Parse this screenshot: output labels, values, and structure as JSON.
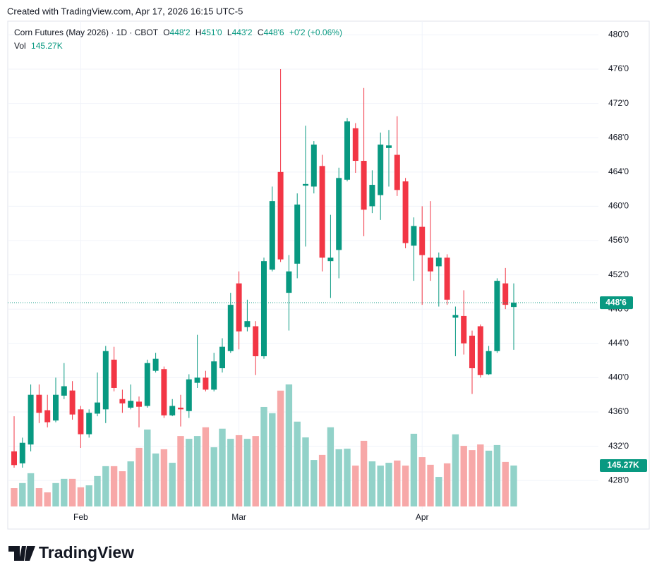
{
  "caption": "Created with TradingView.com, Apr 17, 2026 16:15 UTC-5",
  "brand": "TradingView",
  "chart_data": {
    "type": "candlestick",
    "title": "Corn Futures (May 2026) · 1D · CBOT",
    "ohlc_legend": [
      {
        "key": "O",
        "value": "448'2"
      },
      {
        "key": "H",
        "value": "451'0"
      },
      {
        "key": "L",
        "value": "443'2"
      },
      {
        "key": "C",
        "value": "448'6"
      }
    ],
    "change": "+0'2 (+0.06%)",
    "categories": [
      null,
      null,
      null,
      null,
      null,
      null,
      null,
      null,
      "Feb",
      null,
      null,
      null,
      null,
      null,
      null,
      null,
      null,
      null,
      null,
      null,
      null,
      null,
      null,
      null,
      null,
      null,
      null,
      "Mar",
      null,
      null,
      null,
      null,
      null,
      null,
      null,
      null,
      null,
      null,
      null,
      null,
      null,
      null,
      null,
      null,
      null,
      null,
      null,
      null,
      null,
      "Apr",
      null,
      null,
      null,
      null,
      null,
      null,
      null,
      null,
      null,
      null,
      null
    ],
    "open": [
      431.4,
      430,
      432.2,
      438,
      436.2,
      435,
      437.9,
      438.5,
      436.3,
      433.4,
      435.8,
      436.3,
      442.1,
      437.5,
      436.5,
      437.2,
      436.7,
      440.8,
      441,
      435.6,
      436.5,
      436.1,
      439.4,
      440,
      438.6,
      441.1,
      443.1,
      451,
      445.9,
      446,
      442.5,
      452.6,
      464,
      449.9,
      453.3,
      462.4,
      462.3,
      464.7,
      453.6,
      454.9,
      463.1,
      469.1,
      465.3,
      460,
      461.3,
      466.8,
      466,
      462.9,
      455.4,
      457.6,
      454,
      453,
      454,
      447,
      447.2,
      444.9,
      446,
      440.4,
      443.1,
      451,
      448.25
    ],
    "high": [
      435.5,
      433,
      439.2,
      439.2,
      438,
      440,
      441.7,
      439.6,
      436.7,
      436.3,
      440.6,
      443.7,
      443.6,
      438.6,
      439.2,
      437.8,
      442.1,
      442.9,
      441.3,
      437.5,
      438,
      440.4,
      445,
      440.8,
      442.9,
      444.6,
      449.9,
      452.4,
      449.1,
      446.6,
      454,
      462.3,
      476,
      454.3,
      461.5,
      469.4,
      467.6,
      466,
      459,
      464.5,
      470.3,
      469.7,
      473.8,
      464.2,
      468.6,
      468.9,
      470.5,
      463.3,
      458.7,
      460,
      460.6,
      454.6,
      454.4,
      448.3,
      450.2,
      445.5,
      446.2,
      443.7,
      451.6,
      452.8,
      451
    ],
    "low": [
      429.5,
      429.5,
      431.4,
      434.7,
      434.2,
      434.8,
      437.5,
      435.1,
      431.8,
      433,
      435.5,
      434.7,
      438.4,
      435.9,
      436.3,
      434.2,
      436.5,
      440.6,
      435.3,
      435.5,
      434.3,
      435.3,
      438.8,
      438.4,
      438.4,
      440.6,
      442.9,
      443.3,
      445.4,
      440.3,
      442.2,
      452.4,
      453.5,
      445.5,
      451.6,
      455.3,
      461.5,
      452.4,
      449.3,
      451.6,
      462.9,
      463.9,
      456.5,
      459.2,
      458.4,
      462.3,
      461.2,
      455.1,
      451.3,
      448.5,
      451.3,
      448.3,
      448.5,
      442.5,
      442.7,
      438.1,
      440,
      440.3,
      442.9,
      448,
      443.25
    ],
    "close": [
      429.8,
      432.4,
      438,
      435.9,
      434.8,
      438,
      439,
      435.7,
      433.4,
      435.9,
      437.1,
      443.1,
      438.8,
      437,
      437.3,
      436.6,
      441.7,
      442.2,
      435.6,
      436.7,
      436.3,
      439.8,
      440,
      438.6,
      441.9,
      443.6,
      448.5,
      445.4,
      446.6,
      442.5,
      453.6,
      460.6,
      453.8,
      452.4,
      460.2,
      462.6,
      467.2,
      454,
      454,
      463.3,
      469.9,
      465.3,
      459.6,
      462.5,
      467.2,
      467.1,
      461.9,
      455.7,
      457.7,
      454.3,
      452.4,
      454,
      449.1,
      447.3,
      444,
      441.1,
      440.3,
      443.1,
      451.3,
      448.5,
      448.75
    ],
    "volume": {
      "name": "Vol",
      "values": [
        65000,
        83000,
        118000,
        65000,
        50000,
        83000,
        98000,
        98000,
        68000,
        75000,
        108000,
        143000,
        143000,
        125000,
        160000,
        208000,
        273000,
        188000,
        203000,
        155000,
        250000,
        240000,
        250000,
        281000,
        210000,
        276000,
        240000,
        253000,
        240000,
        250000,
        353000,
        331000,
        411000,
        433000,
        301000,
        245000,
        165000,
        183000,
        281000,
        203000,
        205000,
        145000,
        233000,
        160000,
        145000,
        155000,
        163000,
        145000,
        258000,
        175000,
        148000,
        105000,
        153000,
        256000,
        215000,
        200000,
        220000,
        198000,
        218000,
        158000,
        145270
      ],
      "value_labels": [
        null,
        null,
        null,
        null,
        null,
        null,
        null,
        null,
        null,
        null,
        null,
        null,
        null,
        null,
        null,
        null,
        null,
        null,
        null,
        null,
        null,
        null,
        null,
        null,
        null,
        null,
        null,
        null,
        null,
        null,
        null,
        null,
        null,
        null,
        null,
        null,
        null,
        null,
        null,
        null,
        null,
        null,
        null,
        null,
        null,
        null,
        null,
        null,
        null,
        null,
        null,
        null,
        null,
        null,
        null,
        null,
        null,
        null,
        null,
        null,
        "145.27K"
      ]
    },
    "up_color": "#089981",
    "down_color": "#f23645",
    "volume_up_color": "#92d2c9",
    "volume_down_color": "#f7a8a8",
    "ylim": [
      422.5,
      481.6
    ],
    "yticks": [
      {
        "value": 428,
        "label": "428'0"
      },
      {
        "value": 432,
        "label": "432'0"
      },
      {
        "value": 436,
        "label": "436'0"
      },
      {
        "value": 440,
        "label": "440'0"
      },
      {
        "value": 444,
        "label": "444'0"
      },
      {
        "value": 448,
        "label": "448'0"
      },
      {
        "value": 452,
        "label": "452'0"
      },
      {
        "value": 456,
        "label": "456'0"
      },
      {
        "value": 460,
        "label": "460'0"
      },
      {
        "value": 464,
        "label": "464'0"
      },
      {
        "value": 468,
        "label": "468'0"
      },
      {
        "value": 472,
        "label": "472'0"
      },
      {
        "value": 476,
        "label": "476'0"
      },
      {
        "value": 480,
        "label": "480'0"
      }
    ],
    "grid": true
  }
}
